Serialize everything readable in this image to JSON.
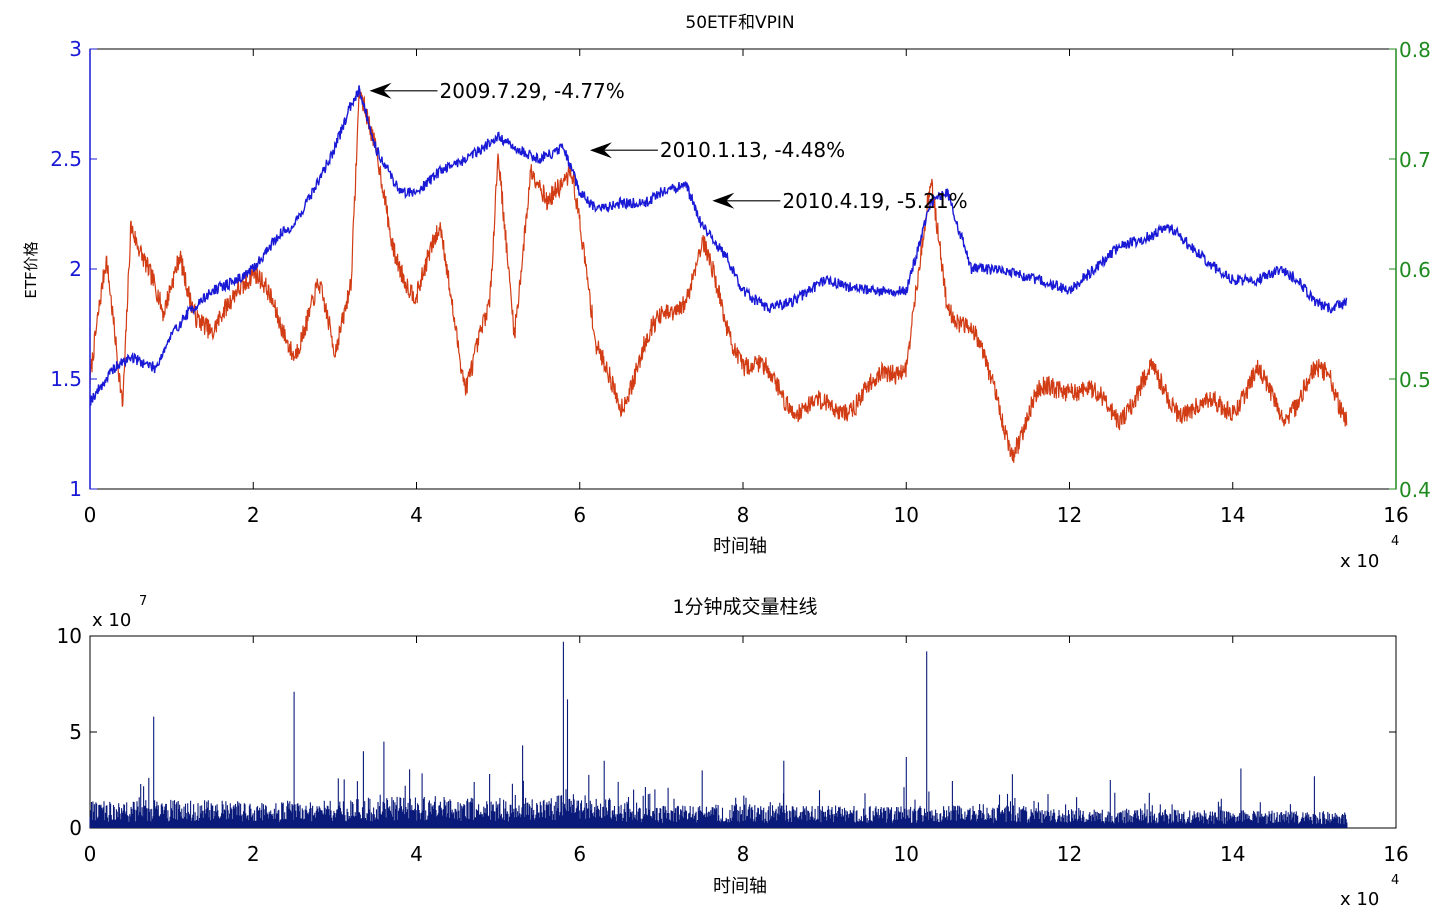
{
  "chart_data": [
    {
      "type": "line",
      "title": "50ETF和VPIN",
      "xlabel": "时间轴",
      "ylabel": "ETF价格",
      "x_multiplier": "x 10",
      "x_multiplier_exp": "4",
      "xlim": [
        0,
        16
      ],
      "ylim_left": [
        1,
        3
      ],
      "ylim_right": [
        0.4,
        0.8
      ],
      "x_ticks": [
        "0",
        "2",
        "4",
        "6",
        "8",
        "10",
        "12",
        "14",
        "16"
      ],
      "y_ticks_left": [
        "1",
        "1.5",
        "2",
        "2.5",
        "3"
      ],
      "y_ticks_right": [
        "0.4",
        "0.5",
        "0.6",
        "0.7",
        "0.8"
      ],
      "colors": {
        "price": "#1a1ad6",
        "vpin": "#d23c14",
        "right_axis": "#1f8a1f"
      },
      "series": [
        {
          "axis": "left",
          "x": [
            0,
            0.3,
            0.5,
            0.8,
            1.0,
            1.2,
            1.5,
            1.8,
            2.0,
            2.3,
            2.5,
            2.8,
            3.0,
            3.2,
            3.3,
            3.5,
            3.8,
            4.0,
            4.3,
            4.6,
            4.8,
            5.0,
            5.2,
            5.5,
            5.8,
            6.0,
            6.2,
            6.5,
            6.8,
            7.0,
            7.3,
            7.5,
            7.8,
            8.0,
            8.3,
            8.6,
            9.0,
            9.3,
            9.6,
            10.0,
            10.3,
            10.5,
            10.8,
            11.0,
            11.3,
            11.6,
            12.0,
            12.3,
            12.6,
            13.0,
            13.2,
            13.5,
            13.8,
            14.0,
            14.3,
            14.6,
            14.8,
            15.0,
            15.2,
            15.4
          ],
          "values": [
            1.4,
            1.55,
            1.6,
            1.55,
            1.7,
            1.8,
            1.9,
            1.95,
            2.0,
            2.15,
            2.2,
            2.4,
            2.55,
            2.75,
            2.82,
            2.55,
            2.35,
            2.35,
            2.45,
            2.5,
            2.55,
            2.6,
            2.55,
            2.5,
            2.55,
            2.35,
            2.27,
            2.3,
            2.3,
            2.35,
            2.38,
            2.2,
            2.05,
            1.9,
            1.82,
            1.85,
            1.95,
            1.92,
            1.9,
            1.9,
            2.3,
            2.35,
            2.0,
            2.0,
            1.98,
            1.95,
            1.9,
            2.0,
            2.1,
            2.15,
            2.2,
            2.1,
            2.0,
            1.95,
            1.95,
            2.0,
            1.95,
            1.85,
            1.82,
            1.85
          ]
        },
        {
          "axis": "right",
          "x": [
            0,
            0.2,
            0.4,
            0.5,
            0.7,
            0.9,
            1.1,
            1.3,
            1.5,
            1.8,
            2.0,
            2.3,
            2.5,
            2.8,
            3.0,
            3.2,
            3.3,
            3.5,
            3.7,
            4.0,
            4.3,
            4.6,
            4.9,
            5.0,
            5.2,
            5.4,
            5.6,
            5.9,
            6.0,
            6.2,
            6.5,
            6.8,
            7.0,
            7.3,
            7.5,
            7.8,
            8.0,
            8.3,
            8.6,
            9.0,
            9.3,
            9.6,
            10.0,
            10.3,
            10.5,
            10.8,
            11.0,
            11.3,
            11.6,
            12.0,
            12.3,
            12.6,
            13.0,
            13.3,
            13.6,
            14.0,
            14.3,
            14.6,
            15.0,
            15.2,
            15.4
          ],
          "values": [
            0.5,
            0.6,
            0.48,
            0.65,
            0.6,
            0.55,
            0.62,
            0.56,
            0.53,
            0.59,
            0.6,
            0.55,
            0.53,
            0.58,
            0.52,
            0.6,
            0.77,
            0.7,
            0.62,
            0.58,
            0.63,
            0.5,
            0.56,
            0.7,
            0.55,
            0.69,
            0.65,
            0.7,
            0.65,
            0.52,
            0.48,
            0.53,
            0.55,
            0.58,
            0.62,
            0.55,
            0.52,
            0.5,
            0.48,
            0.47,
            0.48,
            0.49,
            0.52,
            0.67,
            0.57,
            0.55,
            0.5,
            0.44,
            0.48,
            0.5,
            0.48,
            0.47,
            0.5,
            0.48,
            0.47,
            0.48,
            0.5,
            0.47,
            0.5,
            0.5,
            0.47
          ]
        }
      ],
      "annotations": [
        {
          "text": "2009.7.29,  -4.77%",
          "x": 3.4,
          "y": 2.81
        },
        {
          "text": "2010.1.13,  -4.48%",
          "x": 6.1,
          "y": 2.54
        },
        {
          "text": "2010.4.19,  -5.21%",
          "x": 7.6,
          "y": 2.31
        }
      ]
    },
    {
      "type": "bar",
      "title": "1分钟成交量柱线",
      "xlabel": "时间轴",
      "x_multiplier": "x 10",
      "x_multiplier_exp": "4",
      "y_multiplier": "x 10",
      "y_multiplier_exp": "7",
      "xlim": [
        0,
        16
      ],
      "ylim": [
        0,
        10
      ],
      "x_ticks": [
        "0",
        "2",
        "4",
        "6",
        "8",
        "10",
        "12",
        "14",
        "16"
      ],
      "y_ticks": [
        "0",
        "5",
        "10"
      ],
      "color": "#0a1a7a",
      "baseline_x": [
        0,
        1,
        2,
        3,
        4,
        5,
        6,
        7,
        8,
        9,
        10,
        11,
        12,
        13,
        14,
        15,
        15.4
      ],
      "baseline_values": [
        1.2,
        1.3,
        1.2,
        1.3,
        1.5,
        1.3,
        1.6,
        1.0,
        1.1,
        1.0,
        1.0,
        1.1,
        0.9,
        0.9,
        0.8,
        0.8,
        0.7
      ],
      "spikes_x": [
        0.78,
        2.5,
        3.35,
        3.6,
        5.3,
        5.8,
        5.85,
        6.3,
        7.5,
        8.5,
        10.0,
        10.25,
        11.3,
        12.5,
        14.1,
        15.0
      ],
      "spikes_values": [
        5.8,
        7.1,
        4.0,
        4.5,
        4.3,
        9.7,
        6.7,
        3.5,
        3.0,
        3.5,
        3.7,
        9.2,
        2.8,
        2.5,
        3.1,
        2.7
      ]
    }
  ]
}
